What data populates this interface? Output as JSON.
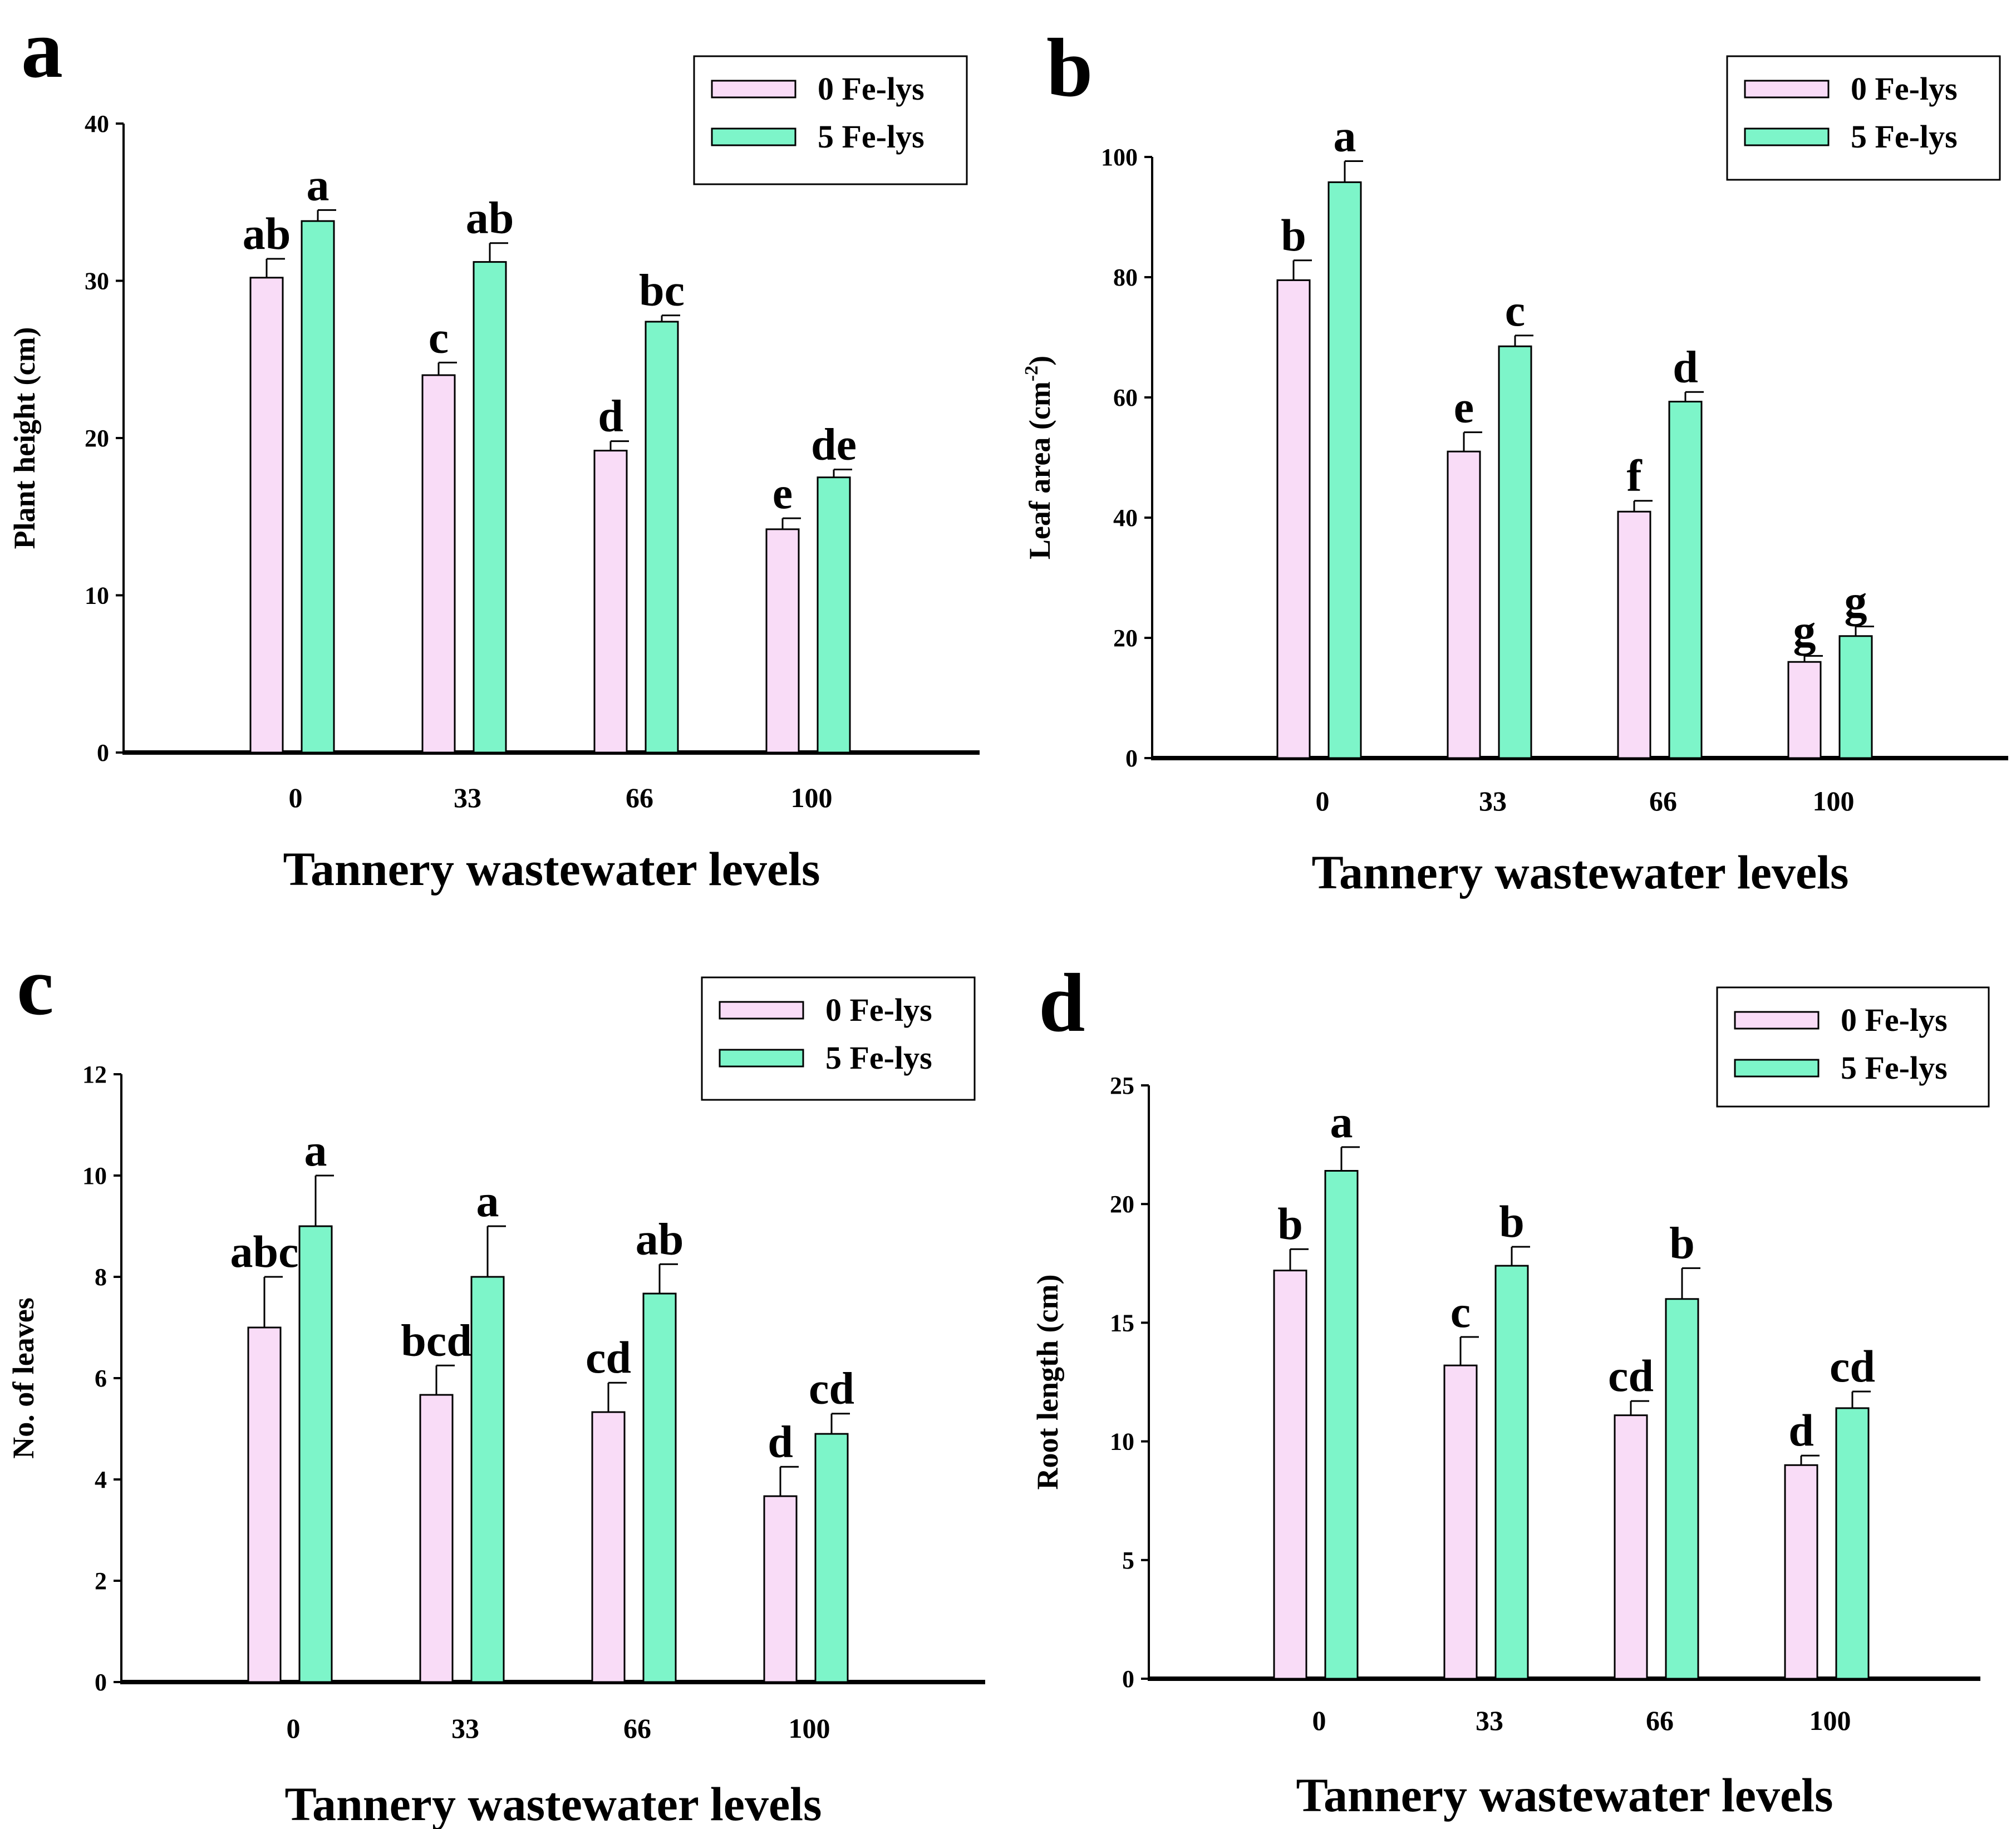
{
  "figure": {
    "series_colors": [
      "#f9dcf7",
      "#7df5c9"
    ],
    "legend": [
      "0 Fe-lys",
      "5 Fe-lys"
    ]
  },
  "chart_data": [
    {
      "panel": "a",
      "type": "bar",
      "xlabel": "Tannery wastewater levels",
      "ylabel": "Plant height (cm)",
      "ylabel_sup": "",
      "categories": [
        "0",
        "33",
        "66",
        "100"
      ],
      "ylim": [
        0,
        40
      ],
      "yticks": [
        0,
        10,
        20,
        30,
        40
      ],
      "legend_position": "top-right",
      "series": [
        {
          "name": "0 Fe-lys",
          "color": "#f9dcf7",
          "values": [
            30.2,
            24.0,
            19.2,
            14.2
          ],
          "errors": [
            1.2,
            0.8,
            0.6,
            0.7
          ],
          "letters": [
            "ab",
            "c",
            "d",
            "e"
          ]
        },
        {
          "name": "5 Fe-lys",
          "color": "#7df5c9",
          "values": [
            33.8,
            31.2,
            27.4,
            17.5
          ],
          "errors": [
            0.7,
            1.2,
            0.4,
            0.5
          ],
          "letters": [
            "a",
            "ab",
            "bc",
            "de"
          ]
        }
      ]
    },
    {
      "panel": "b",
      "type": "bar",
      "xlabel": "Tannery wastewater levels",
      "ylabel": "Leaf area (cm",
      "ylabel_sup": "-2",
      "ylabel_close": ")",
      "categories": [
        "0",
        "33",
        "66",
        "100"
      ],
      "ylim": [
        0,
        100
      ],
      "yticks": [
        0,
        20,
        40,
        60,
        80,
        100
      ],
      "legend_position": "top-right",
      "series": [
        {
          "name": "0 Fe-lys",
          "color": "#f9dcf7",
          "values": [
            79.5,
            51.0,
            41.0,
            16.0
          ],
          "errors": [
            3.3,
            3.2,
            1.8,
            1.0
          ],
          "letters": [
            "b",
            "e",
            "f",
            "g"
          ]
        },
        {
          "name": "5 Fe-lys",
          "color": "#7df5c9",
          "values": [
            95.8,
            68.5,
            59.3,
            20.3
          ],
          "errors": [
            3.5,
            1.8,
            1.6,
            1.6
          ],
          "letters": [
            "a",
            "c",
            "d",
            "g"
          ]
        }
      ]
    },
    {
      "panel": "c",
      "type": "bar",
      "xlabel": "Tannery wastewater levels",
      "ylabel": "No. of leaves",
      "ylabel_sup": "",
      "categories": [
        "0",
        "33",
        "66",
        "100"
      ],
      "ylim": [
        0,
        12
      ],
      "yticks": [
        0,
        2,
        4,
        6,
        8,
        10,
        12
      ],
      "legend_position": "top-right",
      "series": [
        {
          "name": "0 Fe-lys",
          "color": "#f9dcf7",
          "values": [
            7.0,
            5.67,
            5.33,
            3.67
          ],
          "errors": [
            1.0,
            0.58,
            0.58,
            0.58
          ],
          "letters": [
            "abc",
            "bcd",
            "cd",
            "d"
          ]
        },
        {
          "name": "5 Fe-lys",
          "color": "#7df5c9",
          "values": [
            9.0,
            8.0,
            7.67,
            4.9
          ],
          "errors": [
            1.0,
            1.0,
            0.58,
            0.4
          ],
          "letters": [
            "a",
            "a",
            "ab",
            "cd"
          ]
        }
      ]
    },
    {
      "panel": "d",
      "type": "bar",
      "xlabel": "Tannery wastewater levels",
      "ylabel": "Root length (cm)",
      "ylabel_sup": "",
      "categories": [
        "0",
        "33",
        "66",
        "100"
      ],
      "ylim": [
        0,
        25
      ],
      "yticks": [
        0,
        5,
        10,
        15,
        20,
        25
      ],
      "legend_position": "top-right",
      "series": [
        {
          "name": "0 Fe-lys",
          "color": "#f9dcf7",
          "values": [
            17.2,
            13.2,
            11.1,
            9.0
          ],
          "errors": [
            0.9,
            1.2,
            0.6,
            0.4
          ],
          "letters": [
            "b",
            "c",
            "cd",
            "d"
          ]
        },
        {
          "name": "5 Fe-lys",
          "color": "#7df5c9",
          "values": [
            21.4,
            17.4,
            16.0,
            11.4
          ],
          "errors": [
            1.0,
            0.8,
            1.3,
            0.7
          ],
          "letters": [
            "a",
            "b",
            "b",
            "cd"
          ]
        }
      ]
    }
  ]
}
